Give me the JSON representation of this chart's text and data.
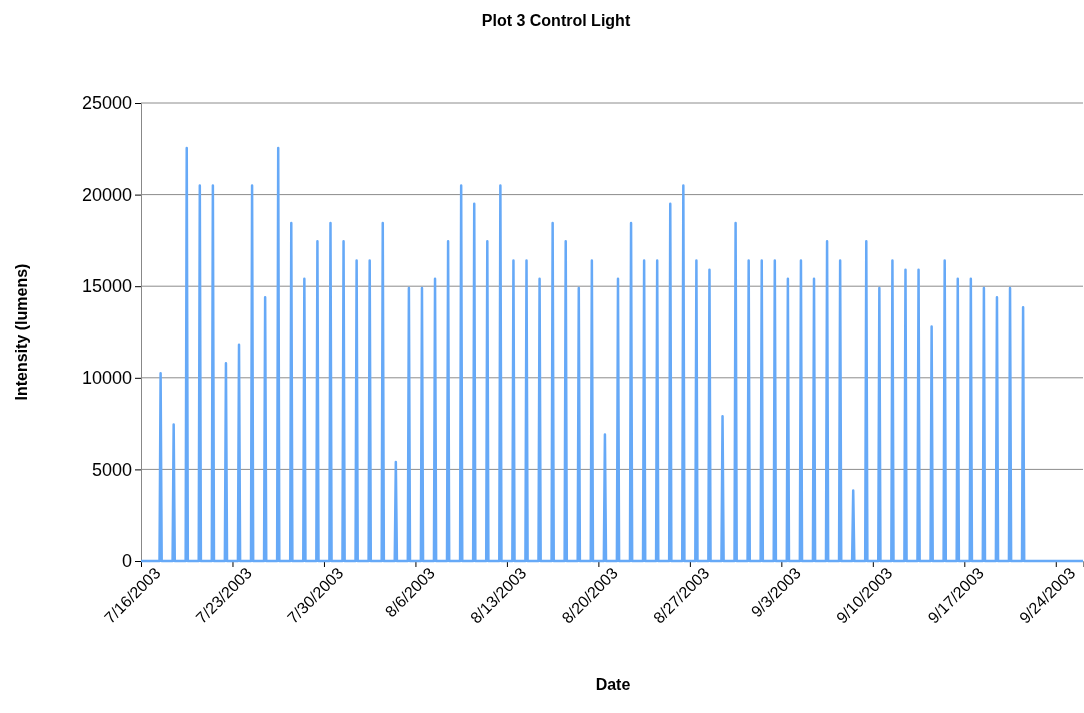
{
  "chart_data": {
    "type": "line",
    "title": "Plot 3 Control Light",
    "xlabel": "Date",
    "ylabel": "Intensity (lumens)",
    "xlim": [
      "2003-07-16",
      "2003-09-26T02:00"
    ],
    "xticks": [
      {
        "value": "2003-07-16",
        "label": "7/16/2003"
      },
      {
        "value": "2003-07-23",
        "label": "7/23/2003"
      },
      {
        "value": "2003-07-30",
        "label": "7/30/2003"
      },
      {
        "value": "2003-08-06",
        "label": "8/6/2003"
      },
      {
        "value": "2003-08-13",
        "label": "8/13/2003"
      },
      {
        "value": "2003-08-20",
        "label": "8/20/2003"
      },
      {
        "value": "2003-08-27",
        "label": "8/27/2003"
      },
      {
        "value": "2003-09-03",
        "label": "9/3/2003"
      },
      {
        "value": "2003-09-10",
        "label": "9/10/2003"
      },
      {
        "value": "2003-09-17",
        "label": "9/17/2003"
      },
      {
        "value": "2003-09-24",
        "label": "9/24/2003"
      }
    ],
    "ylim": [
      0,
      25000
    ],
    "yticks": [
      0,
      5000,
      10000,
      15000,
      20000,
      25000
    ],
    "grid": "y",
    "marker": "none",
    "line_style": "solid",
    "series": [
      {
        "color": "#66a9f7",
        "x": [
          "2003-07-16",
          "2003-07-17T10:00",
          "2003-07-17T12:00",
          "2003-07-17T14:00",
          "2003-07-18T10:00",
          "2003-07-18T12:00",
          "2003-07-18T14:00",
          "2003-07-19T10:00",
          "2003-07-19T12:00",
          "2003-07-19T14:00",
          "2003-07-20T10:00",
          "2003-07-20T12:00",
          "2003-07-20T14:00",
          "2003-07-21T10:00",
          "2003-07-21T12:00",
          "2003-07-21T14:00",
          "2003-07-22T10:00",
          "2003-07-22T12:00",
          "2003-07-22T14:00",
          "2003-07-23T10:00",
          "2003-07-23T12:00",
          "2003-07-23T14:00",
          "2003-07-24T10:00",
          "2003-07-24T12:00",
          "2003-07-24T14:00",
          "2003-07-25T10:00",
          "2003-07-25T12:00",
          "2003-07-25T14:00",
          "2003-07-26T10:00",
          "2003-07-26T12:00",
          "2003-07-26T14:00",
          "2003-07-27T10:00",
          "2003-07-27T12:00",
          "2003-07-27T14:00",
          "2003-07-28T10:00",
          "2003-07-28T12:00",
          "2003-07-28T14:00",
          "2003-07-29T10:00",
          "2003-07-29T12:00",
          "2003-07-29T14:00",
          "2003-07-30T10:00",
          "2003-07-30T12:00",
          "2003-07-30T14:00",
          "2003-07-31T10:00",
          "2003-07-31T12:00",
          "2003-07-31T14:00",
          "2003-08-01T10:00",
          "2003-08-01T12:00",
          "2003-08-01T14:00",
          "2003-08-02T10:00",
          "2003-08-02T12:00",
          "2003-08-02T14:00",
          "2003-08-03T10:00",
          "2003-08-03T12:00",
          "2003-08-03T14:00",
          "2003-08-04T10:00",
          "2003-08-04T12:00",
          "2003-08-04T14:00",
          "2003-08-05T10:00",
          "2003-08-05T12:00",
          "2003-08-05T14:00",
          "2003-08-06T10:00",
          "2003-08-06T12:00",
          "2003-08-06T14:00",
          "2003-08-07T10:00",
          "2003-08-07T12:00",
          "2003-08-07T14:00",
          "2003-08-08T10:00",
          "2003-08-08T12:00",
          "2003-08-08T14:00",
          "2003-08-09T10:00",
          "2003-08-09T12:00",
          "2003-08-09T14:00",
          "2003-08-10T10:00",
          "2003-08-10T12:00",
          "2003-08-10T14:00",
          "2003-08-11T10:00",
          "2003-08-11T12:00",
          "2003-08-11T14:00",
          "2003-08-12T10:00",
          "2003-08-12T12:00",
          "2003-08-12T14:00",
          "2003-08-13T10:00",
          "2003-08-13T12:00",
          "2003-08-13T14:00",
          "2003-08-14T10:00",
          "2003-08-14T12:00",
          "2003-08-14T14:00",
          "2003-08-15T10:00",
          "2003-08-15T12:00",
          "2003-08-15T14:00",
          "2003-08-16T10:00",
          "2003-08-16T12:00",
          "2003-08-16T14:00",
          "2003-08-17T10:00",
          "2003-08-17T12:00",
          "2003-08-17T14:00",
          "2003-08-18T10:00",
          "2003-08-18T12:00",
          "2003-08-18T14:00",
          "2003-08-19T10:00",
          "2003-08-19T12:00",
          "2003-08-19T14:00",
          "2003-08-20T10:00",
          "2003-08-20T12:00",
          "2003-08-20T14:00",
          "2003-08-21T10:00",
          "2003-08-21T12:00",
          "2003-08-21T14:00",
          "2003-08-22T10:00",
          "2003-08-22T12:00",
          "2003-08-22T14:00",
          "2003-08-23T10:00",
          "2003-08-23T12:00",
          "2003-08-23T14:00",
          "2003-08-24T10:00",
          "2003-08-24T12:00",
          "2003-08-24T14:00",
          "2003-08-25T10:00",
          "2003-08-25T12:00",
          "2003-08-25T14:00",
          "2003-08-26T10:00",
          "2003-08-26T12:00",
          "2003-08-26T14:00",
          "2003-08-27T10:00",
          "2003-08-27T12:00",
          "2003-08-27T14:00",
          "2003-08-28T10:00",
          "2003-08-28T12:00",
          "2003-08-28T14:00",
          "2003-08-29T10:00",
          "2003-08-29T12:00",
          "2003-08-29T14:00",
          "2003-08-30T10:00",
          "2003-08-30T12:00",
          "2003-08-30T14:00",
          "2003-08-31T10:00",
          "2003-08-31T12:00",
          "2003-08-31T14:00",
          "2003-09-01T10:00",
          "2003-09-01T12:00",
          "2003-09-01T14:00",
          "2003-09-02T10:00",
          "2003-09-02T12:00",
          "2003-09-02T14:00",
          "2003-09-03T10:00",
          "2003-09-03T12:00",
          "2003-09-03T14:00",
          "2003-09-04T10:00",
          "2003-09-04T12:00",
          "2003-09-04T14:00",
          "2003-09-05T10:00",
          "2003-09-05T12:00",
          "2003-09-05T14:00",
          "2003-09-06T10:00",
          "2003-09-06T12:00",
          "2003-09-06T14:00",
          "2003-09-07T10:00",
          "2003-09-07T12:00",
          "2003-09-07T14:00",
          "2003-09-08T10:00",
          "2003-09-08T12:00",
          "2003-09-08T14:00",
          "2003-09-09T10:00",
          "2003-09-09T12:00",
          "2003-09-09T14:00",
          "2003-09-10T10:00",
          "2003-09-10T12:00",
          "2003-09-10T14:00",
          "2003-09-11T10:00",
          "2003-09-11T12:00",
          "2003-09-11T14:00",
          "2003-09-12T10:00",
          "2003-09-12T12:00",
          "2003-09-12T14:00",
          "2003-09-13T10:00",
          "2003-09-13T12:00",
          "2003-09-13T14:00",
          "2003-09-14T10:00",
          "2003-09-14T12:00",
          "2003-09-14T14:00",
          "2003-09-15T10:00",
          "2003-09-15T12:00",
          "2003-09-15T14:00",
          "2003-09-16T10:00",
          "2003-09-16T12:00",
          "2003-09-16T14:00",
          "2003-09-17T10:00",
          "2003-09-17T12:00",
          "2003-09-17T14:00",
          "2003-09-18T10:00",
          "2003-09-18T12:00",
          "2003-09-18T14:00",
          "2003-09-19T10:00",
          "2003-09-19T12:00",
          "2003-09-19T14:00",
          "2003-09-20T10:00",
          "2003-09-20T12:00",
          "2003-09-20T14:00",
          "2003-09-21T10:00",
          "2003-09-21T12:00",
          "2003-09-21T14:00",
          "2003-09-26T02:00"
        ],
        "values": [
          0,
          0,
          10250,
          0,
          0,
          7450,
          0,
          0,
          22550,
          0,
          0,
          20500,
          0,
          0,
          20500,
          0,
          0,
          10800,
          0,
          0,
          11800,
          0,
          0,
          20500,
          0,
          0,
          14400,
          0,
          0,
          22550,
          0,
          0,
          18450,
          0,
          0,
          15400,
          0,
          0,
          17450,
          0,
          0,
          18450,
          0,
          0,
          17450,
          0,
          0,
          16400,
          0,
          0,
          16400,
          0,
          0,
          18450,
          0,
          0,
          5400,
          0,
          0,
          14900,
          0,
          0,
          14900,
          0,
          0,
          15400,
          0,
          0,
          17450,
          0,
          0,
          20500,
          0,
          0,
          19500,
          0,
          0,
          17450,
          0,
          0,
          20500,
          0,
          0,
          16400,
          0,
          0,
          16400,
          0,
          0,
          15400,
          0,
          0,
          18450,
          0,
          0,
          17450,
          0,
          0,
          14900,
          0,
          0,
          16400,
          0,
          0,
          6900,
          0,
          0,
          15400,
          0,
          0,
          18450,
          0,
          0,
          16400,
          0,
          0,
          16400,
          0,
          0,
          19500,
          0,
          0,
          20500,
          0,
          0,
          16400,
          0,
          0,
          15900,
          0,
          0,
          7900,
          0,
          0,
          18450,
          0,
          0,
          16400,
          0,
          0,
          16400,
          0,
          0,
          16400,
          0,
          0,
          15400,
          0,
          0,
          16400,
          0,
          0,
          15400,
          0,
          0,
          17450,
          0,
          0,
          16400,
          0,
          0,
          3850,
          0,
          0,
          17450,
          0,
          0,
          14900,
          0,
          0,
          16400,
          0,
          0,
          15900,
          0,
          0,
          15900,
          0,
          0,
          12800,
          0,
          0,
          16400,
          0,
          0,
          15400,
          0,
          0,
          15400,
          0,
          0,
          14900,
          0,
          0,
          14400,
          0,
          0,
          14900,
          0,
          0,
          13850,
          0,
          0
        ]
      }
    ]
  }
}
